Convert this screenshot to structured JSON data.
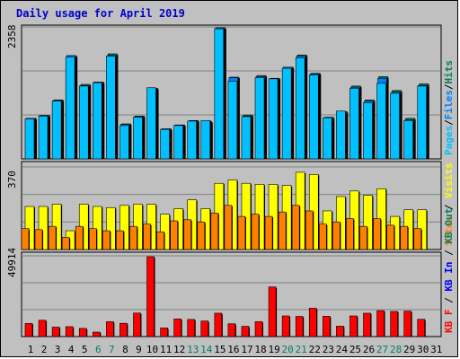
{
  "chart_data": {
    "type": "bar",
    "title": "Daily usage for April 2019",
    "days": [
      "1",
      "2",
      "3",
      "4",
      "5",
      "6",
      "7",
      "8",
      "9",
      "10",
      "11",
      "12",
      "13",
      "14",
      "15",
      "16",
      "17",
      "18",
      "19",
      "20",
      "21",
      "22",
      "23",
      "24",
      "25",
      "26",
      "27",
      "28",
      "29",
      "30",
      "31"
    ],
    "weekend_days": [
      6,
      7,
      13,
      14,
      20,
      21,
      27,
      28
    ],
    "panels": [
      {
        "id": "top",
        "ymax_label": "2358",
        "ymax": 2358,
        "right_label": {
          "parts": [
            "Pages",
            "/",
            "Files",
            "/",
            "Hits"
          ],
          "colors": [
            "#00c0ff",
            "#000000",
            "#0080ff",
            "#000000",
            "#008060"
          ]
        },
        "series": [
          {
            "name": "Hits",
            "color": "#008060",
            "values": [
              730,
              780,
              1060,
              1850,
              1340,
              1380,
              1890,
              630,
              770,
              1270,
              540,
              610,
              690,
              670,
              2358,
              1470,
              790,
              1500,
              1450,
              1650,
              1870,
              1540,
              750,
              850,
              1310,
              1060,
              1480,
              1230,
              730,
              1350
            ]
          },
          {
            "name": "Files",
            "color": "#0080ff",
            "values": [
              730,
              780,
              1050,
              1860,
              1320,
              1380,
              1860,
              620,
              760,
              1270,
              540,
              610,
              680,
              680,
              2358,
              1460,
              770,
              1480,
              1440,
              1650,
              1850,
              1530,
              720,
              810,
              1290,
              1040,
              1450,
              1200,
              700,
              1320
            ]
          },
          {
            "name": "Pages",
            "color": "#00c0ff",
            "values": [
              720,
              770,
              1040,
              1830,
              1310,
              1370,
              1850,
              600,
              750,
              1280,
              530,
              600,
              680,
              690,
              2340,
              1400,
              760,
              1460,
              1440,
              1630,
              1820,
              1510,
              740,
              860,
              1270,
              1010,
              1360,
              1180,
              690,
              1310
            ]
          }
        ]
      },
      {
        "id": "middle",
        "ymax_label": "370",
        "ymax": 370,
        "right_label": {
          "parts": [
            "Sites",
            " / ",
            "Visits"
          ],
          "colors": [
            "#ff8000",
            "#000000",
            "#ffff00"
          ]
        },
        "series": [
          {
            "name": "Visits",
            "color": "#ffff00",
            "values": [
              195,
              195,
              205,
              85,
              205,
              195,
              190,
              200,
              205,
              205,
              160,
              185,
              225,
              185,
              300,
              315,
              300,
              295,
              295,
              290,
              350,
              340,
              175,
              240,
              265,
              245,
              275,
              150,
              180,
              180
            ]
          },
          {
            "name": "Sites",
            "color": "#ff8000",
            "values": [
              95,
              90,
              105,
              55,
              105,
              95,
              85,
              85,
              105,
              115,
              80,
              130,
              135,
              125,
              165,
              200,
              150,
              160,
              150,
              170,
              200,
              175,
              115,
              125,
              140,
              105,
              140,
              110,
              105,
              95
            ]
          }
        ]
      },
      {
        "id": "bottom",
        "ymax_label": "49914",
        "ymax": 49914,
        "right_label": {
          "parts": [
            "KB F",
            " / ",
            "KB In",
            " / ",
            "KB Out"
          ],
          "colors": [
            "#ff0000",
            "#000000",
            "#0000ff",
            "#000000",
            "#008060"
          ]
        },
        "series": [
          {
            "name": "KB F",
            "color": "#ff0000",
            "values": [
              8200,
              10200,
              5900,
              6200,
              5100,
              2800,
              9300,
              8300,
              14700,
              49914,
              5400,
              11000,
              10700,
              9700,
              14600,
              8000,
              6400,
              9300,
              31000,
              12900,
              12600,
              17700,
              12700,
              6500,
              12900,
              14600,
              16200,
              15700,
              15900,
              10800
            ]
          }
        ]
      }
    ]
  }
}
